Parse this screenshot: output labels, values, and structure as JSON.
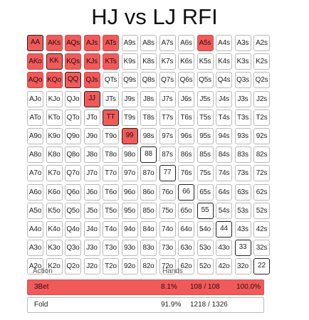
{
  "title": "HJ vs LJ RFI",
  "grid": {
    "raise_color": "#f15a5a",
    "rows": [
      [
        {
          "label": "AA",
          "action": "raise"
        },
        {
          "label": "AKs",
          "action": "raise"
        },
        {
          "label": "AQs",
          "action": "raise"
        },
        {
          "label": "AJs",
          "action": "raise"
        },
        {
          "label": "ATs",
          "action": "raise"
        },
        {
          "label": "A9s",
          "action": "fold"
        },
        {
          "label": "A8s",
          "action": "fold"
        },
        {
          "label": "A7s",
          "action": "fold"
        },
        {
          "label": "A6s",
          "action": "fold"
        },
        {
          "label": "A5s",
          "action": "raise"
        },
        {
          "label": "A4s",
          "action": "fold"
        },
        {
          "label": "A3s",
          "action": "fold"
        },
        {
          "label": "A2s",
          "action": "fold"
        }
      ],
      [
        {
          "label": "AKo",
          "action": "raise"
        },
        {
          "label": "KK",
          "action": "raise"
        },
        {
          "label": "KQs",
          "action": "raise"
        },
        {
          "label": "KJs",
          "action": "raise"
        },
        {
          "label": "KTs",
          "action": "raise"
        },
        {
          "label": "K9s",
          "action": "fold"
        },
        {
          "label": "K8s",
          "action": "fold"
        },
        {
          "label": "K7s",
          "action": "fold"
        },
        {
          "label": "K6s",
          "action": "fold"
        },
        {
          "label": "K5s",
          "action": "fold"
        },
        {
          "label": "K4s",
          "action": "fold"
        },
        {
          "label": "K3s",
          "action": "fold"
        },
        {
          "label": "K2s",
          "action": "fold"
        }
      ],
      [
        {
          "label": "AQo",
          "action": "raise"
        },
        {
          "label": "KQo",
          "action": "raise"
        },
        {
          "label": "QQ",
          "action": "raise"
        },
        {
          "label": "QJs",
          "action": "raise"
        },
        {
          "label": "QTs",
          "action": "fold"
        },
        {
          "label": "Q9s",
          "action": "fold"
        },
        {
          "label": "Q8s",
          "action": "fold"
        },
        {
          "label": "Q7s",
          "action": "fold"
        },
        {
          "label": "Q6s",
          "action": "fold"
        },
        {
          "label": "Q5s",
          "action": "fold"
        },
        {
          "label": "Q4s",
          "action": "fold"
        },
        {
          "label": "Q3s",
          "action": "fold"
        },
        {
          "label": "Q2s",
          "action": "fold"
        }
      ],
      [
        {
          "label": "AJo",
          "action": "fold"
        },
        {
          "label": "KJo",
          "action": "fold"
        },
        {
          "label": "QJo",
          "action": "fold"
        },
        {
          "label": "JJ",
          "action": "raise"
        },
        {
          "label": "JTs",
          "action": "fold"
        },
        {
          "label": "J9s",
          "action": "fold"
        },
        {
          "label": "J8s",
          "action": "fold"
        },
        {
          "label": "J7s",
          "action": "fold"
        },
        {
          "label": "J6s",
          "action": "fold"
        },
        {
          "label": "J5s",
          "action": "fold"
        },
        {
          "label": "J4s",
          "action": "fold"
        },
        {
          "label": "J3s",
          "action": "fold"
        },
        {
          "label": "J2s",
          "action": "fold"
        }
      ],
      [
        {
          "label": "ATo",
          "action": "fold"
        },
        {
          "label": "KTo",
          "action": "fold"
        },
        {
          "label": "QTo",
          "action": "fold"
        },
        {
          "label": "JTo",
          "action": "fold"
        },
        {
          "label": "TT",
          "action": "raise"
        },
        {
          "label": "T9s",
          "action": "fold"
        },
        {
          "label": "T8s",
          "action": "fold"
        },
        {
          "label": "T7s",
          "action": "fold"
        },
        {
          "label": "T6s",
          "action": "fold"
        },
        {
          "label": "T5s",
          "action": "fold"
        },
        {
          "label": "T4s",
          "action": "fold"
        },
        {
          "label": "T3s",
          "action": "fold"
        },
        {
          "label": "T2s",
          "action": "fold"
        }
      ],
      [
        {
          "label": "A9o",
          "action": "fold"
        },
        {
          "label": "K9o",
          "action": "fold"
        },
        {
          "label": "Q9o",
          "action": "fold"
        },
        {
          "label": "J9o",
          "action": "fold"
        },
        {
          "label": "T9o",
          "action": "fold"
        },
        {
          "label": "99",
          "action": "raise"
        },
        {
          "label": "98s",
          "action": "fold"
        },
        {
          "label": "97s",
          "action": "fold"
        },
        {
          "label": "96s",
          "action": "fold"
        },
        {
          "label": "95s",
          "action": "fold"
        },
        {
          "label": "94s",
          "action": "fold"
        },
        {
          "label": "93s",
          "action": "fold"
        },
        {
          "label": "92s",
          "action": "fold"
        }
      ],
      [
        {
          "label": "A8o",
          "action": "fold"
        },
        {
          "label": "K8o",
          "action": "fold"
        },
        {
          "label": "Q8o",
          "action": "fold"
        },
        {
          "label": "J8o",
          "action": "fold"
        },
        {
          "label": "T8o",
          "action": "fold"
        },
        {
          "label": "98o",
          "action": "fold"
        },
        {
          "label": "88",
          "action": "fold"
        },
        {
          "label": "87s",
          "action": "fold"
        },
        {
          "label": "86s",
          "action": "fold"
        },
        {
          "label": "85s",
          "action": "fold"
        },
        {
          "label": "84s",
          "action": "fold"
        },
        {
          "label": "83s",
          "action": "fold"
        },
        {
          "label": "82s",
          "action": "fold"
        }
      ],
      [
        {
          "label": "A7o",
          "action": "fold"
        },
        {
          "label": "K7o",
          "action": "fold"
        },
        {
          "label": "Q7o",
          "action": "fold"
        },
        {
          "label": "J7o",
          "action": "fold"
        },
        {
          "label": "T7o",
          "action": "fold"
        },
        {
          "label": "97o",
          "action": "fold"
        },
        {
          "label": "87o",
          "action": "fold"
        },
        {
          "label": "77",
          "action": "fold"
        },
        {
          "label": "76s",
          "action": "fold"
        },
        {
          "label": "75s",
          "action": "fold"
        },
        {
          "label": "74s",
          "action": "fold"
        },
        {
          "label": "73s",
          "action": "fold"
        },
        {
          "label": "72s",
          "action": "fold"
        }
      ],
      [
        {
          "label": "A6o",
          "action": "fold"
        },
        {
          "label": "K6o",
          "action": "fold"
        },
        {
          "label": "Q6o",
          "action": "fold"
        },
        {
          "label": "J6o",
          "action": "fold"
        },
        {
          "label": "T6o",
          "action": "fold"
        },
        {
          "label": "96o",
          "action": "fold"
        },
        {
          "label": "86o",
          "action": "fold"
        },
        {
          "label": "76o",
          "action": "fold"
        },
        {
          "label": "66",
          "action": "fold"
        },
        {
          "label": "65s",
          "action": "fold"
        },
        {
          "label": "64s",
          "action": "fold"
        },
        {
          "label": "63s",
          "action": "fold"
        },
        {
          "label": "62s",
          "action": "fold"
        }
      ],
      [
        {
          "label": "A5o",
          "action": "fold"
        },
        {
          "label": "K5o",
          "action": "fold"
        },
        {
          "label": "Q5o",
          "action": "fold"
        },
        {
          "label": "J5o",
          "action": "fold"
        },
        {
          "label": "T5o",
          "action": "fold"
        },
        {
          "label": "95o",
          "action": "fold"
        },
        {
          "label": "85o",
          "action": "fold"
        },
        {
          "label": "75o",
          "action": "fold"
        },
        {
          "label": "65o",
          "action": "fold"
        },
        {
          "label": "55",
          "action": "fold"
        },
        {
          "label": "54s",
          "action": "fold"
        },
        {
          "label": "53s",
          "action": "fold"
        },
        {
          "label": "52s",
          "action": "fold"
        }
      ],
      [
        {
          "label": "A4o",
          "action": "fold"
        },
        {
          "label": "K4o",
          "action": "fold"
        },
        {
          "label": "Q4o",
          "action": "fold"
        },
        {
          "label": "J4o",
          "action": "fold"
        },
        {
          "label": "T4o",
          "action": "fold"
        },
        {
          "label": "94o",
          "action": "fold"
        },
        {
          "label": "84o",
          "action": "fold"
        },
        {
          "label": "74o",
          "action": "fold"
        },
        {
          "label": "64o",
          "action": "fold"
        },
        {
          "label": "54o",
          "action": "fold"
        },
        {
          "label": "44",
          "action": "fold"
        },
        {
          "label": "43s",
          "action": "fold"
        },
        {
          "label": "42s",
          "action": "fold"
        }
      ],
      [
        {
          "label": "A3o",
          "action": "fold"
        },
        {
          "label": "K3o",
          "action": "fold"
        },
        {
          "label": "Q3o",
          "action": "fold"
        },
        {
          "label": "J3o",
          "action": "fold"
        },
        {
          "label": "T3o",
          "action": "fold"
        },
        {
          "label": "93o",
          "action": "fold"
        },
        {
          "label": "83o",
          "action": "fold"
        },
        {
          "label": "73o",
          "action": "fold"
        },
        {
          "label": "63o",
          "action": "fold"
        },
        {
          "label": "53o",
          "action": "fold"
        },
        {
          "label": "43o",
          "action": "fold"
        },
        {
          "label": "33",
          "action": "fold"
        },
        {
          "label": "32s",
          "action": "fold"
        }
      ],
      [
        {
          "label": "A2o",
          "action": "fold"
        },
        {
          "label": "K2o",
          "action": "fold"
        },
        {
          "label": "Q2o",
          "action": "fold"
        },
        {
          "label": "J2o",
          "action": "fold"
        },
        {
          "label": "T2o",
          "action": "fold"
        },
        {
          "label": "92o",
          "action": "fold"
        },
        {
          "label": "82o",
          "action": "fold"
        },
        {
          "label": "72o",
          "action": "fold"
        },
        {
          "label": "62o",
          "action": "fold"
        },
        {
          "label": "52o",
          "action": "fold"
        },
        {
          "label": "42o",
          "action": "fold"
        },
        {
          "label": "32o",
          "action": "fold"
        },
        {
          "label": "22",
          "action": "fold"
        }
      ]
    ]
  },
  "actions": {
    "header": {
      "action": "Action",
      "hands": "Hands"
    },
    "rows": [
      {
        "name": "3Bet",
        "percent": "8.1%",
        "count": "108 / 108",
        "frequency": "100.0%",
        "color": "#f15a5a"
      },
      {
        "name": "Fold",
        "percent": "91.9%",
        "count": "1218 / 1326",
        "frequency": "",
        "color": "#ffffff"
      }
    ]
  }
}
